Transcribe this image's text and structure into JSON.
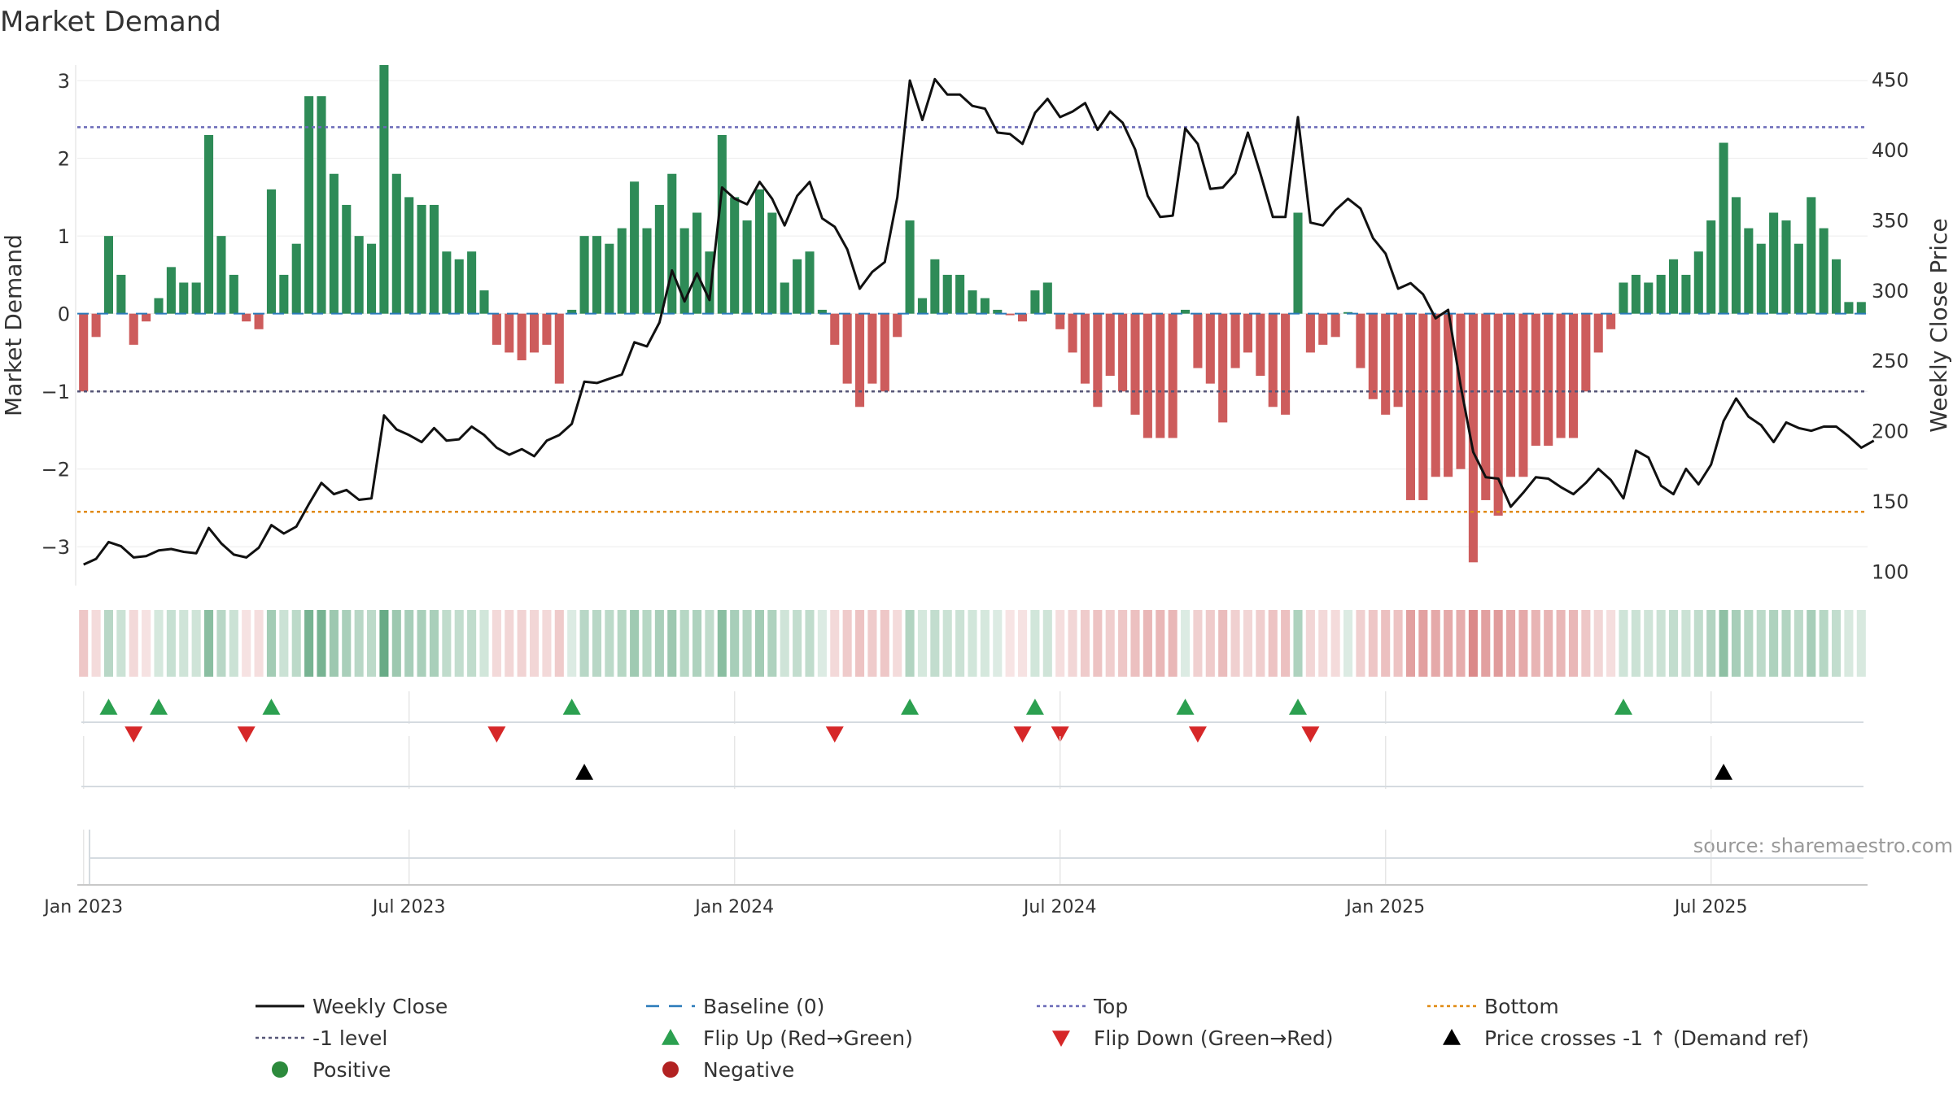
{
  "chart_data": {
    "type": "bar",
    "title": "Market Demand",
    "ylabel_left": "Market Demand",
    "ylabel_right": "Weekly Close Price",
    "source": "source: sharemaestro.com",
    "ylim_left": [
      -3.5,
      3.2
    ],
    "ylim_right": [
      90,
      460
    ],
    "yticks_left": [
      {
        "v": 3,
        "label": "3"
      },
      {
        "v": 2,
        "label": "2"
      },
      {
        "v": 1,
        "label": "1"
      },
      {
        "v": 0,
        "label": "0"
      },
      {
        "v": -1,
        "label": "−1"
      },
      {
        "v": -2,
        "label": "−2"
      },
      {
        "v": -3,
        "label": "−3"
      }
    ],
    "yticks_right": [
      {
        "v": 450,
        "label": "450"
      },
      {
        "v": 400,
        "label": "400"
      },
      {
        "v": 350,
        "label": "350"
      },
      {
        "v": 300,
        "label": "300"
      },
      {
        "v": 250,
        "label": "250"
      },
      {
        "v": 200,
        "label": "200"
      },
      {
        "v": 150,
        "label": "150"
      },
      {
        "v": 100,
        "label": "100"
      }
    ],
    "xticks": [
      {
        "week": 1,
        "label": "Jan 2023"
      },
      {
        "week": 27,
        "label": "Jul 2023"
      },
      {
        "week": 53,
        "label": "Jan 2024"
      },
      {
        "week": 79,
        "label": "Jul 2024"
      },
      {
        "week": 105,
        "label": "Jan 2025"
      },
      {
        "week": 131,
        "label": "Jul 2025"
      }
    ],
    "reference_lines": {
      "top": 2.4,
      "level_minus1": -1,
      "bottom": -2.55,
      "baseline": 0
    },
    "demand": [
      -1.0,
      -0.3,
      1.0,
      0.5,
      -0.4,
      -0.1,
      0.2,
      0.6,
      0.4,
      0.4,
      2.3,
      1.0,
      0.5,
      -0.1,
      -0.2,
      1.6,
      0.5,
      0.9,
      2.8,
      2.8,
      1.8,
      1.4,
      1.0,
      0.9,
      3.2,
      1.8,
      1.5,
      1.4,
      1.4,
      0.8,
      0.7,
      0.8,
      0.3,
      -0.4,
      -0.5,
      -0.6,
      -0.5,
      -0.4,
      -0.9,
      0.05,
      1.0,
      1.0,
      0.9,
      1.1,
      1.7,
      1.1,
      1.4,
      1.8,
      1.1,
      1.3,
      0.8,
      2.3,
      1.5,
      1.2,
      1.6,
      1.3,
      0.4,
      0.7,
      0.8,
      0.05,
      -0.4,
      -0.9,
      -1.2,
      -0.9,
      -1.0,
      -0.3,
      1.2,
      0.2,
      0.7,
      0.5,
      0.5,
      0.3,
      0.2,
      0.05,
      -0.02,
      -0.1,
      0.3,
      0.4,
      -0.2,
      -0.5,
      -0.9,
      -1.2,
      -0.8,
      -1.0,
      -1.3,
      -1.6,
      -1.6,
      -1.6,
      0.05,
      -0.7,
      -0.9,
      -1.4,
      -0.7,
      -0.5,
      -0.8,
      -1.2,
      -1.3,
      1.3,
      -0.5,
      -0.4,
      -0.3,
      0.02,
      -0.7,
      -1.1,
      -1.3,
      -1.2,
      -2.4,
      -2.4,
      -2.1,
      -2.1,
      -2.0,
      -3.2,
      -2.4,
      -2.6,
      -2.1,
      -2.1,
      -1.7,
      -1.7,
      -1.6,
      -1.6,
      -1.0,
      -0.5,
      -0.2,
      0.4,
      0.5,
      0.4,
      0.5,
      0.7,
      0.5,
      0.8,
      1.2,
      2.2,
      1.5,
      1.1,
      0.9,
      1.3,
      1.2,
      0.9,
      1.5,
      1.1,
      0.7,
      0.15,
      0.15
    ],
    "weekly_close": [
      105,
      109,
      121,
      118,
      110,
      111,
      115,
      116,
      114,
      113,
      131,
      120,
      112,
      110,
      117,
      133,
      127,
      132,
      148,
      163,
      155,
      158,
      151,
      152,
      211,
      201,
      197,
      192,
      202,
      193,
      194,
      203,
      197,
      188,
      183,
      187,
      182,
      193,
      197,
      205,
      235,
      234,
      237,
      240,
      263,
      260,
      277,
      314,
      292,
      312,
      293,
      373,
      365,
      361,
      377,
      365,
      346,
      367,
      377,
      351,
      345,
      329,
      301,
      313,
      320,
      366,
      449,
      421,
      450,
      439,
      439,
      431,
      429,
      412,
      411,
      404,
      426,
      436,
      423,
      427,
      433,
      414,
      427,
      419,
      400,
      367,
      352,
      353,
      415,
      404,
      372,
      373,
      383,
      412,
      383,
      352,
      352,
      423,
      348,
      346,
      357,
      365,
      358,
      337,
      326,
      301,
      305,
      297,
      280,
      286,
      232,
      185,
      167,
      166,
      146,
      156,
      167,
      166,
      160,
      155,
      163,
      173,
      165,
      152,
      186,
      181,
      161,
      155,
      173,
      162,
      176,
      207,
      223,
      210,
      204,
      192,
      206,
      202,
      200,
      203,
      203,
      196,
      188,
      193
    ],
    "flip_up_weeks": [
      3,
      7,
      16,
      40,
      67,
      77,
      89,
      98,
      124
    ],
    "flip_down_weeks": [
      5,
      14,
      34,
      61,
      76,
      79,
      90,
      99
    ],
    "price_cross_weeks": [
      41,
      132
    ],
    "legend": [
      {
        "label": "Weekly Close",
        "marker": "line",
        "color": "#111111"
      },
      {
        "label": "Baseline (0)",
        "marker": "dash",
        "color": "#2b7bba"
      },
      {
        "label": "Top",
        "marker": "dot",
        "color": "#6a6ab8"
      },
      {
        "label": "Bottom",
        "marker": "dot",
        "color": "#e08a12"
      },
      {
        "label": "-1 level",
        "marker": "dot",
        "color": "#555577"
      },
      {
        "label": "Flip Up (Red→Green)",
        "marker": "triangle-up",
        "color": "#2ca050"
      },
      {
        "label": "Flip Down (Green→Red)",
        "marker": "triangle-down",
        "color": "#d62728"
      },
      {
        "label": "Price crosses -1 ↑ (Demand ref)",
        "marker": "triangle-up",
        "color": "#000000"
      },
      {
        "label": "Positive",
        "marker": "circle",
        "color": "#2c8a3c"
      },
      {
        "label": "Negative",
        "marker": "circle",
        "color": "#b22222"
      }
    ]
  },
  "colors": {
    "positive_bar": "#2e8b57",
    "negative_bar": "#cd5c5c",
    "price_line": "#111111",
    "top_line": "#6a6ab8",
    "bottom_line": "#e08a12",
    "minus1_line": "#555577",
    "baseline": "#2b7bba",
    "flip_up": "#2ca050",
    "flip_down": "#d62728",
    "cross": "#000000"
  }
}
